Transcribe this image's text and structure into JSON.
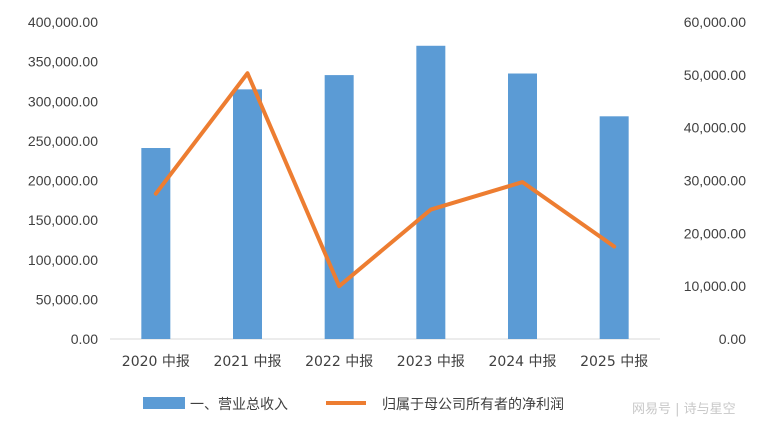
{
  "chart_data": {
    "type": "bar",
    "categories": [
      "2020 中报",
      "2021 中报",
      "2022 中报",
      "2023 中报",
      "2024 中报",
      "2025 中报"
    ],
    "series": [
      {
        "name": "一、营业总收入",
        "type": "bar",
        "axis": "left",
        "color": "#5b9bd5",
        "values": [
          241000,
          315000,
          333000,
          370000,
          335000,
          281000
        ]
      },
      {
        "name": "归属于母公司所有者的净利润",
        "type": "line",
        "axis": "right",
        "color": "#ed7d31",
        "values": [
          27500,
          50300,
          10000,
          24500,
          29700,
          17500
        ]
      }
    ],
    "y_left": {
      "min": 0,
      "max": 400000,
      "ticks": [
        "0.00",
        "50,000.00",
        "100,000.00",
        "150,000.00",
        "200,000.00",
        "250,000.00",
        "300,000.00",
        "350,000.00",
        "400,000.00"
      ]
    },
    "y_right": {
      "min": 0,
      "max": 60000,
      "ticks": [
        "0.00",
        "10,000.00",
        "20,000.00",
        "30,000.00",
        "40,000.00",
        "50,000.00",
        "60,000.00"
      ]
    },
    "grid": false,
    "legend_position": "bottom"
  },
  "watermark": "网易号 | 诗与星空"
}
